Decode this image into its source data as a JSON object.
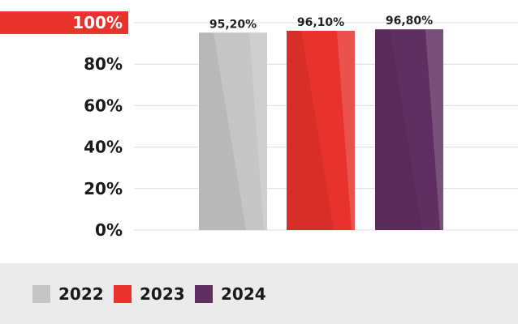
{
  "chart_data": {
    "type": "bar",
    "categories": [
      "2022",
      "2023",
      "2024"
    ],
    "values": [
      95.2,
      96.1,
      96.8
    ],
    "data_labels": [
      "95,20%",
      "96,10%",
      "96,80%"
    ],
    "title": "",
    "xlabel": "",
    "ylabel": "",
    "ylim": [
      0,
      100
    ],
    "yticks": [
      0,
      20,
      40,
      60,
      80,
      100
    ],
    "ytick_labels": [
      "0%",
      "20%",
      "40%",
      "60%",
      "80%",
      "100%"
    ],
    "highlighted_tick": "100%",
    "grid": true,
    "legend_position": "bottom",
    "colors": {
      "2022": "#c6c6c6",
      "2023": "#e8322c",
      "2024": "#5f2f61",
      "highlight": "#e8322c",
      "grid": "#dddddd"
    }
  },
  "legend": {
    "items": [
      {
        "label": "2022",
        "color": "#c6c6c6"
      },
      {
        "label": "2023",
        "color": "#e8322c"
      },
      {
        "label": "2024",
        "color": "#5f2f61"
      }
    ]
  }
}
